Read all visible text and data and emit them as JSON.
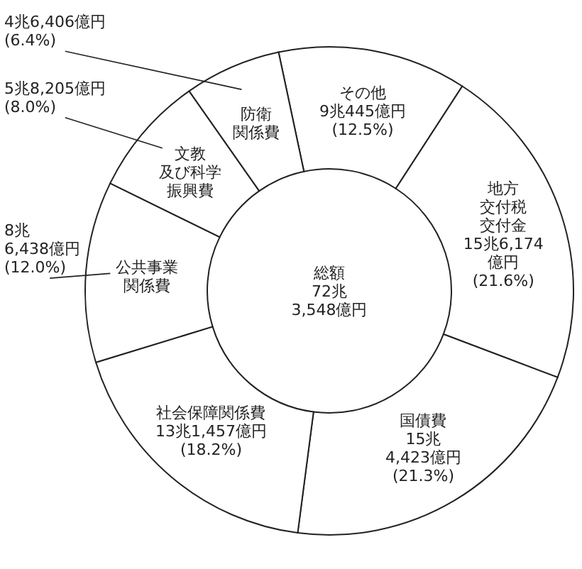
{
  "chart_data": {
    "type": "donut",
    "categories": [
      "その他",
      "地方交付税交付金",
      "国債費",
      "社会保障関係費",
      "公共事業関係費",
      "文教及び科学振興費",
      "防衛関係費"
    ],
    "values": [
      12.5,
      21.6,
      21.3,
      18.2,
      12.0,
      8.0,
      6.4
    ],
    "value_labels": [
      "9兆445億円\n(12.5%)",
      "15兆6,174\n億円\n(21.6%)",
      "15兆\n4,423億円\n(21.3%)",
      "13兆1,457億円\n(18.2%)",
      "8兆\n6,438億円\n(12.0%)",
      "5兆8,205億円\n(8.0%)",
      "4兆6,406億円\n(6.4%)"
    ],
    "colors": [
      "#ffffff",
      "#ffffff",
      "#ffffff",
      "#ffffff",
      "#ffffff",
      "#ffffff",
      "#ffffff"
    ],
    "annotations": [
      "総額\n72兆\n3,548億円"
    ]
  }
}
